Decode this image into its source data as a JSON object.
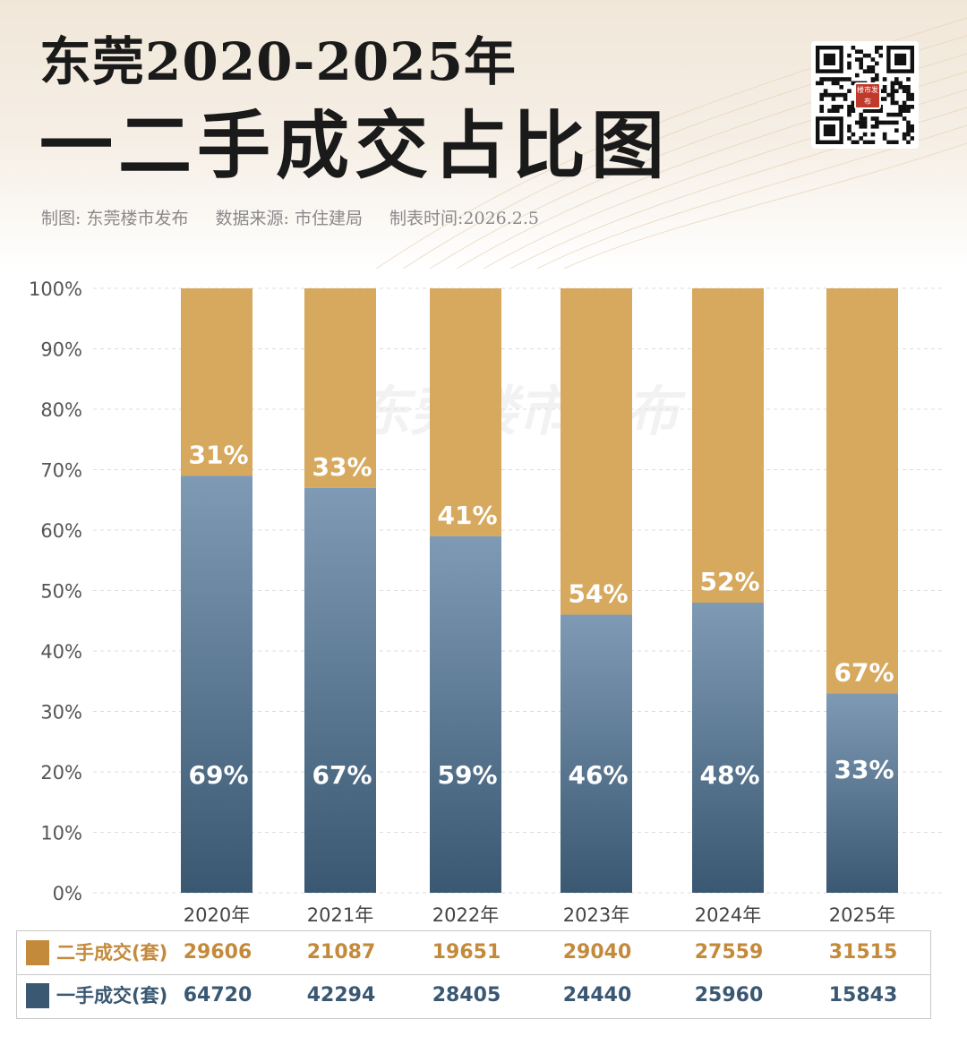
{
  "header": {
    "title_line1": "东莞2020-2025年",
    "title_line2": "一二手成交占比图",
    "credits": [
      "制图: 东莞楼市发布",
      "数据来源: 市住建局",
      "制表时间:2026.2.5"
    ],
    "qr_logo_text": "楼市发布"
  },
  "colors": {
    "second_hand": "#d7a95f",
    "second_hand_text": "#c48a3c",
    "first_hand_top": "#7f9ab4",
    "first_hand_bottom": "#3a5872",
    "first_hand_text": "#3a5872"
  },
  "chart_data": {
    "type": "bar",
    "stacked": true,
    "percent": true,
    "title": "东莞2020-2025年 一二手成交占比图",
    "categories": [
      "2020年",
      "2021年",
      "2022年",
      "2023年",
      "2024年",
      "2025年"
    ],
    "series": [
      {
        "name": "一手成交(套)",
        "percent_values": [
          69,
          67,
          59,
          46,
          48,
          33
        ],
        "percent_labels": [
          "69%",
          "67%",
          "59%",
          "46%",
          "48%",
          "33%"
        ],
        "counts": [
          64720,
          42294,
          28405,
          24440,
          25960,
          15843
        ]
      },
      {
        "name": "二手成交(套)",
        "percent_values": [
          31,
          33,
          41,
          54,
          52,
          67
        ],
        "percent_labels": [
          "31%",
          "33%",
          "41%",
          "54%",
          "52%",
          "67%"
        ],
        "counts": [
          29606,
          21087,
          19651,
          29040,
          27559,
          31515
        ]
      }
    ],
    "y_ticks": [
      "0%",
      "10%",
      "20%",
      "30%",
      "40%",
      "50%",
      "60%",
      "70%",
      "80%",
      "90%",
      "100%"
    ],
    "ylim": [
      0,
      100
    ],
    "grid": true,
    "watermark": "东莞楼市发布",
    "legend_placement": "bottom table"
  },
  "table": {
    "rows": [
      {
        "label": "二手成交(套)",
        "values": [
          "29606",
          "21087",
          "19651",
          "29040",
          "27559",
          "31515"
        ]
      },
      {
        "label": "一手成交(套)",
        "values": [
          "64720",
          "42294",
          "28405",
          "24440",
          "25960",
          "15843"
        ]
      }
    ]
  }
}
